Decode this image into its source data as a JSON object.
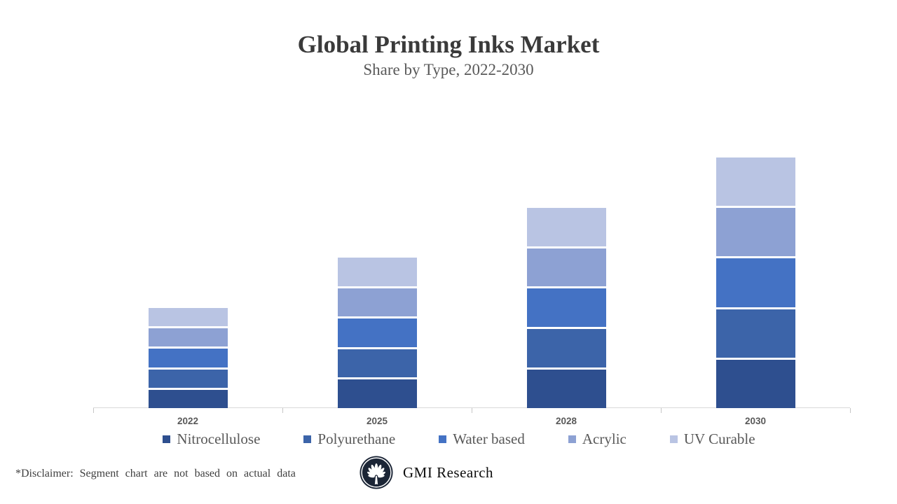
{
  "header": {
    "title": "Global Printing Inks Market",
    "subtitle": "Share by Type, 2022-2030"
  },
  "chart_data": {
    "type": "bar",
    "subtype": "stacked-column",
    "title": "Global Printing Inks Market",
    "subtitle": "Share by Type, 2022-2030",
    "categories": [
      "2022",
      "2025",
      "2028",
      "2030"
    ],
    "series": [
      {
        "name": "Nitrocellulose",
        "color": "#2e4f8f",
        "values": [
          8,
          12,
          16,
          20
        ]
      },
      {
        "name": "Polyurethane",
        "color": "#3c64a9",
        "values": [
          8,
          12,
          16,
          20
        ]
      },
      {
        "name": "Water based",
        "color": "#4472c4",
        "values": [
          8,
          12,
          16,
          20
        ]
      },
      {
        "name": "Acrylic",
        "color": "#8da1d3",
        "values": [
          8,
          12,
          16,
          20
        ]
      },
      {
        "name": "UV Curable",
        "color": "#b9c4e3",
        "values": [
          8,
          12,
          16,
          20
        ]
      }
    ],
    "stack_totals": [
      40,
      60,
      80,
      100
    ],
    "xlabel": "",
    "ylabel": "",
    "ylim": [
      0,
      100
    ],
    "value_axis_visible": false,
    "gridlines": false,
    "legend_position": "bottom",
    "axis_line_color": "#d9d9d9",
    "segment_gap_color": "#ffffff",
    "note": "relative share index read from bar heights; equal 20% segments per year"
  },
  "footer": {
    "disclaimer": "*Disclaimer:  Segment chart are not based on actual data",
    "brand_name": "GMI Research",
    "logo_icon": "palm-fan-icon"
  }
}
